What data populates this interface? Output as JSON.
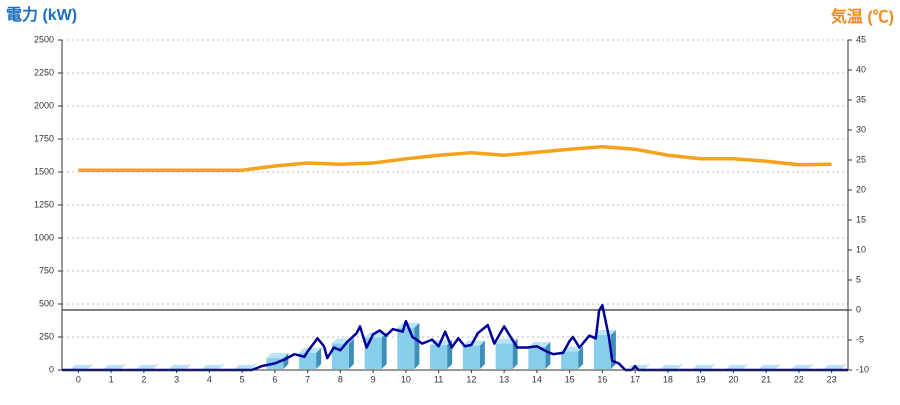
{
  "chart_data": {
    "type": "combo",
    "title": "電力 (kW)",
    "y2_title": "気温 (℃)",
    "categories": [
      "0",
      "1",
      "2",
      "3",
      "4",
      "5",
      "6",
      "7",
      "8",
      "9",
      "10",
      "11",
      "12",
      "13",
      "14",
      "15",
      "16",
      "17",
      "18",
      "19",
      "20",
      "21",
      "22",
      "23"
    ],
    "xlim": [
      -0.5,
      23.5
    ],
    "ylim": [
      0,
      2500
    ],
    "yticks": [
      0,
      250,
      500,
      750,
      1000,
      1250,
      1500,
      1750,
      2000,
      2250,
      2500
    ],
    "y2lim": [
      -10,
      45
    ],
    "y2ticks": [
      -10,
      -5,
      0,
      5,
      10,
      15,
      20,
      25,
      30,
      35,
      40,
      45
    ],
    "grid": true,
    "series": [
      {
        "type": "bar",
        "color": "#87ceeb",
        "values": [
          0,
          0,
          0,
          0,
          0,
          0,
          90,
          130,
          200,
          245,
          320,
          190,
          185,
          200,
          175,
          140,
          265,
          0,
          0,
          0,
          0,
          0,
          0,
          0
        ]
      },
      {
        "type": "line",
        "color": "#000099",
        "x": [
          -0.5,
          5.3,
          5.6,
          6,
          6.3,
          6.6,
          6.9,
          7,
          7.3,
          7.5,
          7.6,
          7.8,
          8,
          8.2,
          8.5,
          8.6,
          8.8,
          9,
          9.2,
          9.4,
          9.6,
          9.9,
          10,
          10.2,
          10.5,
          10.8,
          11,
          11.2,
          11.4,
          11.6,
          11.8,
          12,
          12.2,
          12.5,
          12.7,
          13,
          13.2,
          13.4,
          13.7,
          14,
          14.3,
          14.5,
          14.8,
          15,
          15.1,
          15.3,
          15.6,
          15.8,
          15.9,
          16,
          16.2,
          16.3,
          16.5,
          16.7,
          16.9,
          17,
          17.1,
          23.5
        ],
        "values": [
          0,
          0,
          30,
          50,
          80,
          120,
          100,
          140,
          240,
          180,
          90,
          170,
          150,
          210,
          280,
          330,
          170,
          270,
          300,
          260,
          310,
          290,
          370,
          250,
          200,
          230,
          180,
          290,
          170,
          240,
          180,
          190,
          280,
          340,
          200,
          330,
          250,
          170,
          170,
          180,
          140,
          120,
          130,
          220,
          250,
          170,
          260,
          240,
          450,
          490,
          250,
          70,
          50,
          0,
          0,
          30,
          0,
          0
        ]
      },
      {
        "type": "line",
        "axis": "y2",
        "color": "#f5a31a",
        "values": [
          23.3,
          23.3,
          23.3,
          23.3,
          23.3,
          23.3,
          24,
          24.5,
          24.3,
          24.5,
          25.2,
          25.8,
          26.2,
          25.8,
          26.3,
          26.8,
          27.2,
          26.8,
          25.8,
          25.2,
          25.2,
          24.8,
          24.2,
          24.3
        ]
      }
    ]
  }
}
